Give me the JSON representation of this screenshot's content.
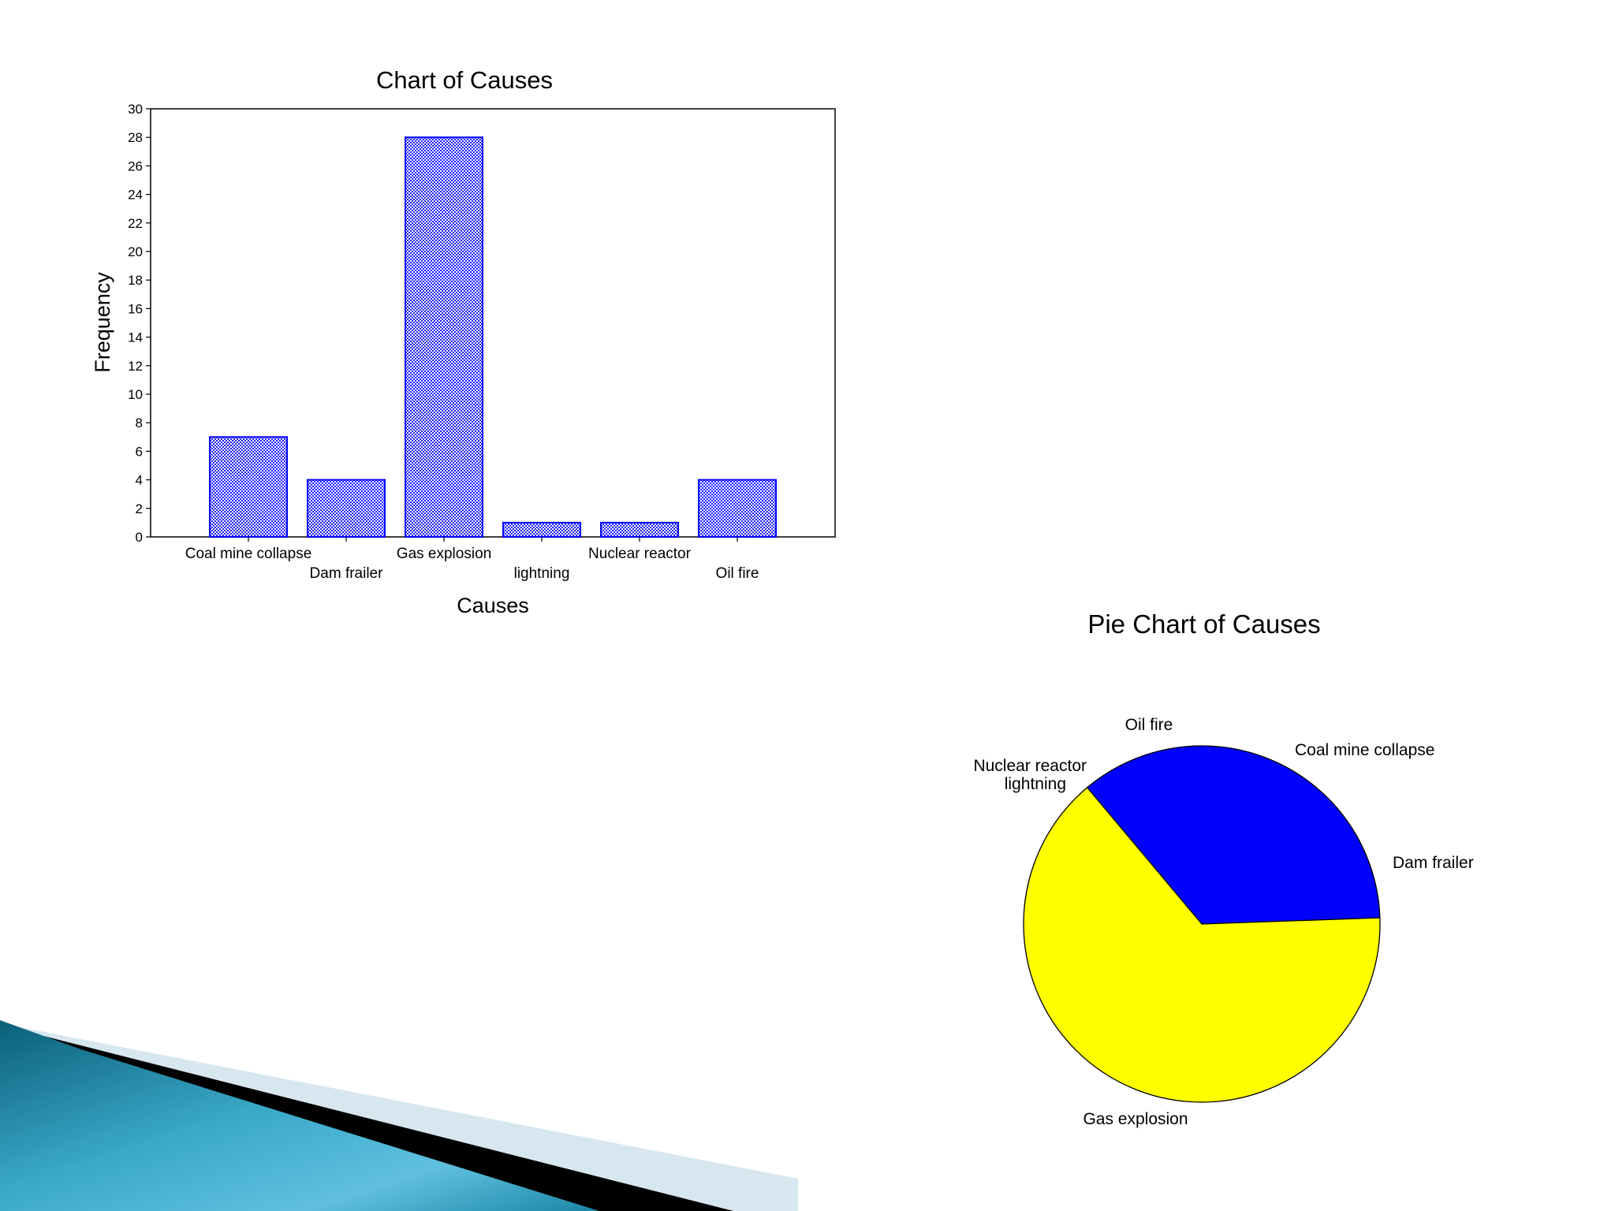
{
  "slide": {
    "decoration_colors": {
      "teal_dark": "#0d6f87",
      "teal_light": "#5fc0de",
      "black_band": "#000000",
      "pale_band": "#d6e7f0"
    }
  },
  "chart_data": [
    {
      "type": "bar",
      "title": "Chart of Causes",
      "xlabel": "Causes",
      "ylabel": "Frequency",
      "categories": [
        "Coal mine collapse",
        "Dam frailer",
        "Gas explosion",
        "lightning",
        "Nuclear reactor",
        "Oil fire"
      ],
      "values": [
        7,
        4,
        28,
        1,
        1,
        4
      ],
      "ylim": [
        0,
        30
      ],
      "yticks": [
        0,
        2,
        4,
        6,
        8,
        10,
        12,
        14,
        16,
        18,
        20,
        22,
        24,
        26,
        28,
        30
      ],
      "grid": false,
      "bar_color": "#0000ff",
      "bar_fill": "checkered"
    },
    {
      "type": "pie",
      "title": "Pie Chart of Causes",
      "labels": [
        "Coal mine collapse",
        "Dam frailer",
        "Gas explosion",
        "lightning",
        "Nuclear reactor",
        "Oil fire"
      ],
      "values": [
        7,
        4,
        28,
        1,
        1,
        4
      ],
      "colors": [
        "#0000ff",
        "#0000ff",
        "#ffff00",
        "#ffff00",
        "#0000ff",
        "#0000ff"
      ]
    }
  ]
}
